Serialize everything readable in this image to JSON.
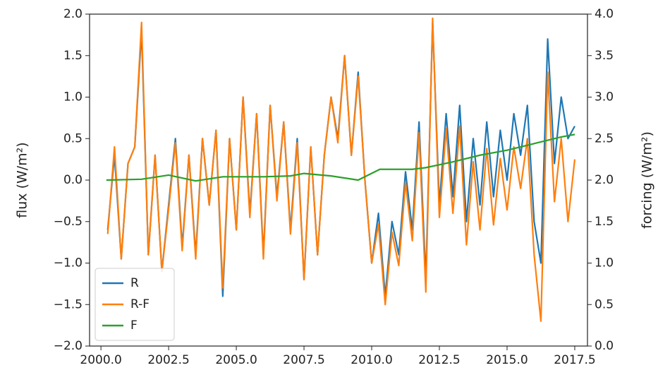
{
  "chart_data": {
    "type": "line",
    "y_label": "flux (W/m²)",
    "y2_label": "forcing (W/m²)",
    "xlim": [
      1999.58,
      2017.97
    ],
    "ylim": [
      -2,
      2
    ],
    "y2lim": [
      0,
      4
    ],
    "xticks": [
      {
        "value": 2000,
        "label": "2000.0"
      },
      {
        "value": 2002.5,
        "label": "2002.5"
      },
      {
        "value": 2005,
        "label": "2005.0"
      },
      {
        "value": 2007.5,
        "label": "2007.5"
      },
      {
        "value": 2010,
        "label": "2010.0"
      },
      {
        "value": 2012.5,
        "label": "2012.5"
      },
      {
        "value": 2015,
        "label": "2015.0"
      },
      {
        "value": 2017.5,
        "label": "2017.5"
      }
    ],
    "yticks": [
      {
        "value": -2,
        "label": "−2.0"
      },
      {
        "value": -1.5,
        "label": "−1.5"
      },
      {
        "value": -1,
        "label": "−1.0"
      },
      {
        "value": -0.5,
        "label": "−0.5"
      },
      {
        "value": 0,
        "label": "0.0"
      },
      {
        "value": 0.5,
        "label": "0.5"
      },
      {
        "value": 1,
        "label": "1.0"
      },
      {
        "value": 1.5,
        "label": "1.5"
      },
      {
        "value": 2,
        "label": "2.0"
      }
    ],
    "y2ticks": [
      {
        "value": 0,
        "label": "0.0"
      },
      {
        "value": 0.5,
        "label": "0.5"
      },
      {
        "value": 1,
        "label": "1.0"
      },
      {
        "value": 1.5,
        "label": "1.5"
      },
      {
        "value": 2,
        "label": "2.0"
      },
      {
        "value": 2.5,
        "label": "2.5"
      },
      {
        "value": 3,
        "label": "3.0"
      },
      {
        "value": 3.5,
        "label": "3.5"
      },
      {
        "value": 4,
        "label": "4.0"
      }
    ],
    "legend": "lower left",
    "series": [
      {
        "name": "R",
        "color": "#1f77b4",
        "x": [
          2000.25,
          2000.5,
          2000.75,
          2001,
          2001.25,
          2001.5,
          2001.75,
          2002,
          2002.25,
          2002.5,
          2002.75,
          2003,
          2003.25,
          2003.5,
          2003.75,
          2004,
          2004.25,
          2004.5,
          2004.75,
          2005,
          2005.25,
          2005.5,
          2005.75,
          2006,
          2006.25,
          2006.5,
          2006.75,
          2007,
          2007.25,
          2007.5,
          2007.75,
          2008,
          2008.25,
          2008.5,
          2008.75,
          2009,
          2009.25,
          2009.5,
          2009.75,
          2010,
          2010.25,
          2010.5,
          2010.75,
          2011,
          2011.25,
          2011.5,
          2011.75,
          2012,
          2012.25,
          2012.5,
          2012.75,
          2013,
          2013.25,
          2013.5,
          2013.75,
          2014,
          2014.25,
          2014.5,
          2014.75,
          2015,
          2015.25,
          2015.5,
          2015.75,
          2016,
          2016.25,
          2016.5,
          2016.75,
          2017,
          2017.25,
          2017.5
        ],
        "values": [
          -0.6,
          0.3,
          -0.95,
          0.2,
          0.4,
          1.8,
          -0.9,
          0.3,
          -1.1,
          -0.3,
          0.5,
          -0.8,
          0.3,
          -0.9,
          0.5,
          -0.3,
          0.6,
          -1.4,
          0.5,
          -0.6,
          1.0,
          -0.4,
          0.8,
          -0.9,
          0.9,
          -0.2,
          0.7,
          -0.6,
          0.5,
          -1.2,
          0.4,
          -0.9,
          0.3,
          1.0,
          0.5,
          1.5,
          0.3,
          1.3,
          0.0,
          -1.0,
          -0.4,
          -1.4,
          -0.5,
          -0.9,
          0.1,
          -0.6,
          0.7,
          -1.2,
          1.9,
          -0.3,
          0.8,
          -0.2,
          0.9,
          -0.5,
          0.5,
          -0.3,
          0.7,
          -0.2,
          0.6,
          0.0,
          0.8,
          0.3,
          0.9,
          -0.5,
          -1.0,
          1.7,
          0.2,
          1.0,
          0.5,
          0.65
        ]
      },
      {
        "name": "R-F",
        "color": "#ff7f0e",
        "x": [
          2000.25,
          2000.5,
          2000.75,
          2001,
          2001.25,
          2001.5,
          2001.75,
          2002,
          2002.25,
          2002.5,
          2002.75,
          2003,
          2003.25,
          2003.5,
          2003.75,
          2004,
          2004.25,
          2004.5,
          2004.75,
          2005,
          2005.25,
          2005.5,
          2005.75,
          2006,
          2006.25,
          2006.5,
          2006.75,
          2007,
          2007.25,
          2007.5,
          2007.75,
          2008,
          2008.25,
          2008.5,
          2008.75,
          2009,
          2009.25,
          2009.5,
          2009.75,
          2010,
          2010.25,
          2010.5,
          2010.75,
          2011,
          2011.25,
          2011.5,
          2011.75,
          2012,
          2012.25,
          2012.5,
          2012.75,
          2013,
          2013.25,
          2013.5,
          2013.75,
          2014,
          2014.25,
          2014.5,
          2014.75,
          2015,
          2015.25,
          2015.5,
          2015.75,
          2016,
          2016.25,
          2016.5,
          2016.75,
          2017,
          2017.25,
          2017.5
        ],
        "values": [
          -0.65,
          0.4,
          -0.95,
          0.2,
          0.4,
          1.9,
          -0.9,
          0.3,
          -1.1,
          -0.35,
          0.45,
          -0.85,
          0.3,
          -0.95,
          0.5,
          -0.3,
          0.6,
          -1.3,
          0.5,
          -0.6,
          1.0,
          -0.45,
          0.8,
          -0.95,
          0.9,
          -0.25,
          0.7,
          -0.65,
          0.45,
          -1.2,
          0.4,
          -0.9,
          0.3,
          1.0,
          0.45,
          1.5,
          0.3,
          1.25,
          0.0,
          -1.0,
          -0.53,
          -1.5,
          -0.63,
          -1.03,
          -0.03,
          -0.73,
          0.57,
          -1.35,
          1.95,
          -0.45,
          0.62,
          -0.4,
          0.65,
          -0.78,
          0.22,
          -0.6,
          0.38,
          -0.54,
          0.26,
          -0.36,
          0.4,
          -0.1,
          0.5,
          -0.9,
          -1.7,
          1.3,
          -0.26,
          0.5,
          -0.5,
          0.25
        ]
      },
      {
        "name": "F",
        "color": "#2ca02c",
        "axis": "y2",
        "x": [
          2000.2,
          2001.5,
          2002.5,
          2003.5,
          2004.5,
          2006,
          2007,
          2007.5,
          2008.5,
          2009.5,
          2010.3,
          2011.5,
          2012,
          2013,
          2014,
          2015,
          2016,
          2017,
          2017.5
        ],
        "values": [
          2.0,
          2.01,
          2.06,
          1.99,
          2.04,
          2.04,
          2.05,
          2.08,
          2.05,
          2.0,
          2.13,
          2.13,
          2.15,
          2.22,
          2.3,
          2.36,
          2.44,
          2.52,
          2.55
        ]
      }
    ]
  }
}
